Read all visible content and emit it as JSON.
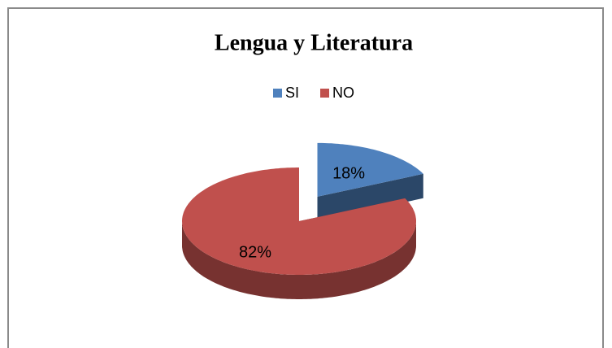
{
  "chart_data": {
    "type": "pie",
    "title": "Lengua y Literatura",
    "categories": [
      "SI",
      "NO"
    ],
    "values": [
      18,
      82
    ],
    "value_labels": [
      "18%",
      "82%"
    ],
    "colors": [
      "#4f81bd",
      "#c0504d"
    ],
    "legend": "top"
  }
}
